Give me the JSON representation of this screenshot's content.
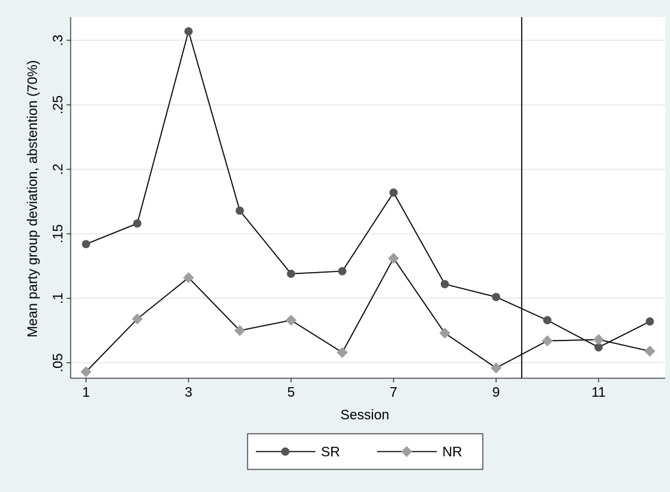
{
  "chart_data": {
    "type": "line",
    "title": "",
    "xlabel": "Session",
    "ylabel": "Mean party group deviation, abstention (70%)",
    "xlim": [
      0.7,
      12.3
    ],
    "ylim": [
      0.038,
      0.318
    ],
    "xticks": [
      1,
      3,
      5,
      7,
      9,
      11
    ],
    "xtick_labels": [
      "1",
      "3",
      "5",
      "7",
      "9",
      "11"
    ],
    "yticks": [
      0.05,
      0.1,
      0.15,
      0.2,
      0.25,
      0.3
    ],
    "ytick_labels": [
      ".05",
      ".1",
      ".15",
      ".2",
      ".25",
      ".3"
    ],
    "grid": "horizontal",
    "reference_line_x": 9.5,
    "legend_position": "bottom",
    "x": [
      1,
      2,
      3,
      4,
      5,
      6,
      7,
      8,
      9,
      10,
      11,
      12
    ],
    "series": [
      {
        "name": "SR",
        "marker": "circle",
        "color": "#555555",
        "values": [
          0.142,
          0.158,
          0.307,
          0.168,
          0.119,
          0.121,
          0.182,
          0.111,
          0.101,
          0.083,
          0.062,
          0.082
        ]
      },
      {
        "name": "NR",
        "marker": "diamond",
        "color": "#9e9e9e",
        "values": [
          0.043,
          0.084,
          0.116,
          0.075,
          0.083,
          0.058,
          0.131,
          0.073,
          0.046,
          0.067,
          0.068,
          0.059
        ]
      }
    ]
  },
  "colors": {
    "background": "#eaf2f3",
    "plot_background": "#ffffff",
    "grid": "#e3e9ea",
    "line": "#000000"
  }
}
